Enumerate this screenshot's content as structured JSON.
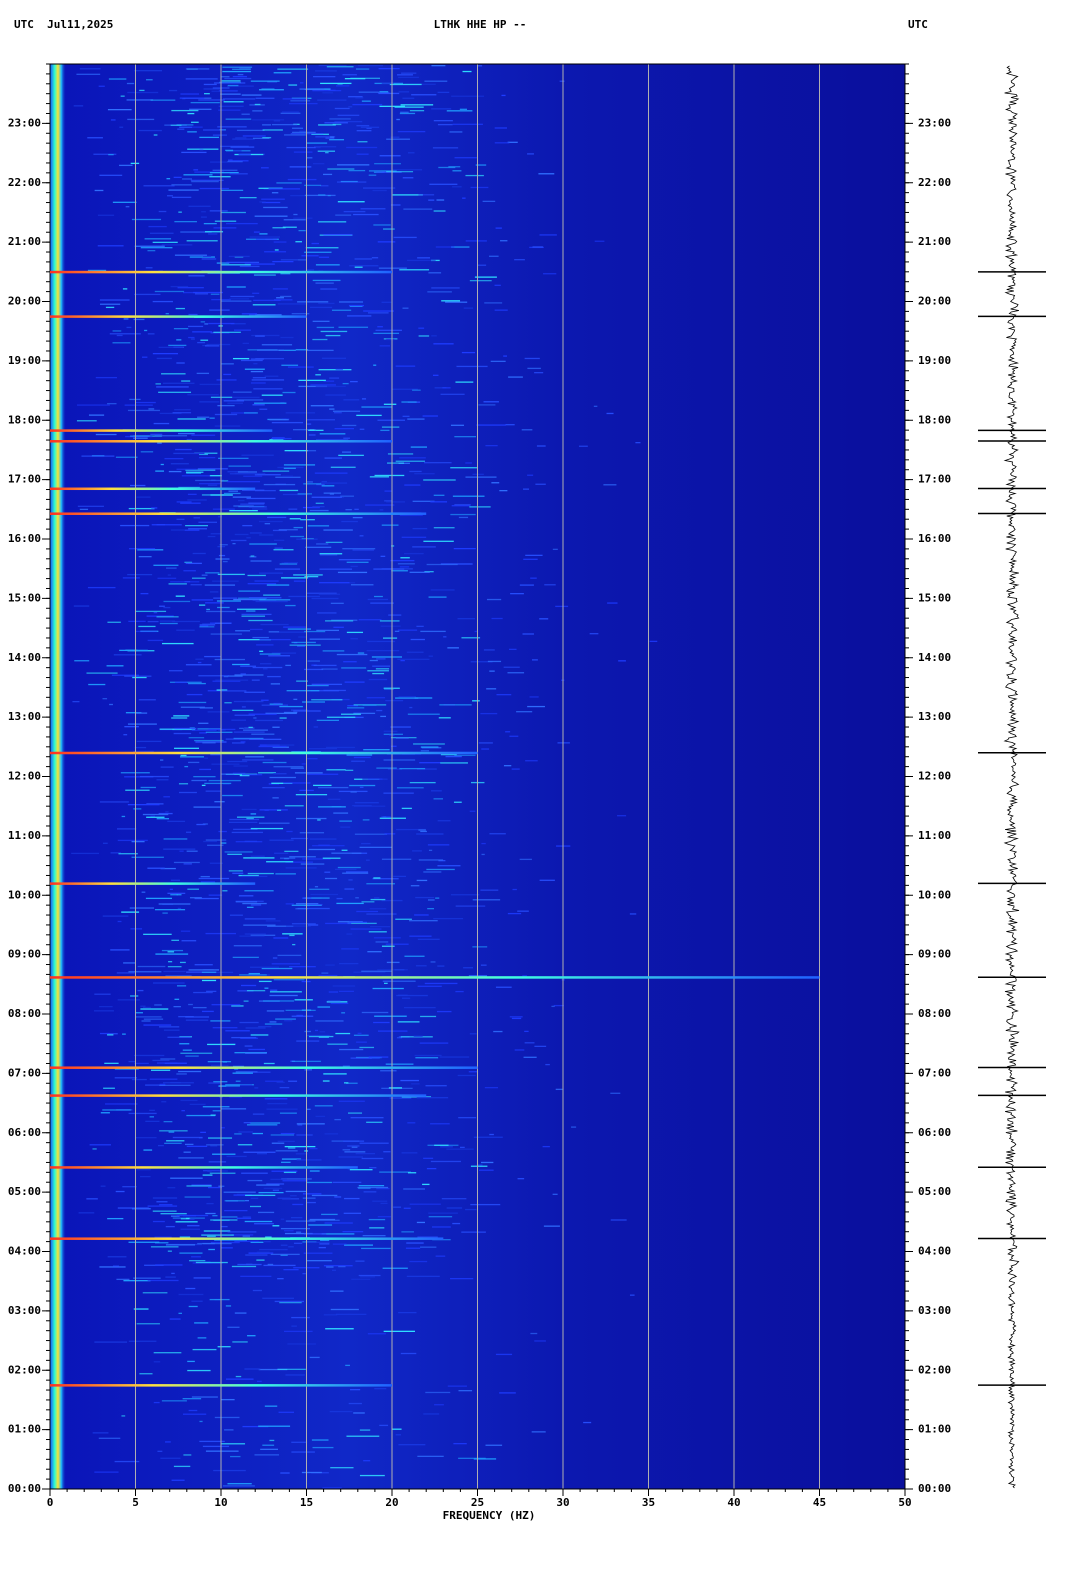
{
  "chart_data": {
    "type": "spectrogram",
    "title_left": "UTC  Jul11,2025",
    "title": "LTHK HHE HP --",
    "title_right": "UTC",
    "xlabel": "FREQUENCY (HZ)",
    "xlim": [
      0,
      50
    ],
    "xticks": [
      0,
      5,
      10,
      15,
      20,
      25,
      30,
      35,
      40,
      45,
      50
    ],
    "ylim": [
      0,
      24
    ],
    "yticks": [
      {
        "value": 0,
        "label": "00:00"
      },
      {
        "value": 1,
        "label": "01:00"
      },
      {
        "value": 2,
        "label": "02:00"
      },
      {
        "value": 3,
        "label": "03:00"
      },
      {
        "value": 4,
        "label": "04:00"
      },
      {
        "value": 5,
        "label": "05:00"
      },
      {
        "value": 6,
        "label": "06:00"
      },
      {
        "value": 7,
        "label": "07:00"
      },
      {
        "value": 8,
        "label": "08:00"
      },
      {
        "value": 9,
        "label": "09:00"
      },
      {
        "value": 10,
        "label": "10:00"
      },
      {
        "value": 11,
        "label": "11:00"
      },
      {
        "value": 12,
        "label": "12:00"
      },
      {
        "value": 13,
        "label": "13:00"
      },
      {
        "value": 14,
        "label": "14:00"
      },
      {
        "value": 15,
        "label": "15:00"
      },
      {
        "value": 16,
        "label": "16:00"
      },
      {
        "value": 17,
        "label": "17:00"
      },
      {
        "value": 18,
        "label": "18:00"
      },
      {
        "value": 19,
        "label": "19:00"
      },
      {
        "value": 20,
        "label": "20:00"
      },
      {
        "value": 21,
        "label": "21:00"
      },
      {
        "value": 22,
        "label": "22:00"
      },
      {
        "value": 23,
        "label": "23:00"
      }
    ],
    "grid": true,
    "events": [
      {
        "time": 16.43,
        "fmax": 22
      },
      {
        "time": 12.4,
        "fmax": 25
      },
      {
        "time": 17.65,
        "fmax": 20
      },
      {
        "time": 17.83,
        "fmax": 13
      },
      {
        "time": 16.85,
        "fmax": 12
      },
      {
        "time": 19.75,
        "fmax": 15
      },
      {
        "time": 10.2,
        "fmax": 12
      },
      {
        "time": 8.62,
        "fmax": 45
      },
      {
        "time": 7.1,
        "fmax": 25
      },
      {
        "time": 6.63,
        "fmax": 22
      },
      {
        "time": 4.22,
        "fmax": 23
      },
      {
        "time": 5.42,
        "fmax": 18
      },
      {
        "time": 20.5,
        "fmax": 20
      },
      {
        "time": 1.75,
        "fmax": 20
      }
    ]
  }
}
